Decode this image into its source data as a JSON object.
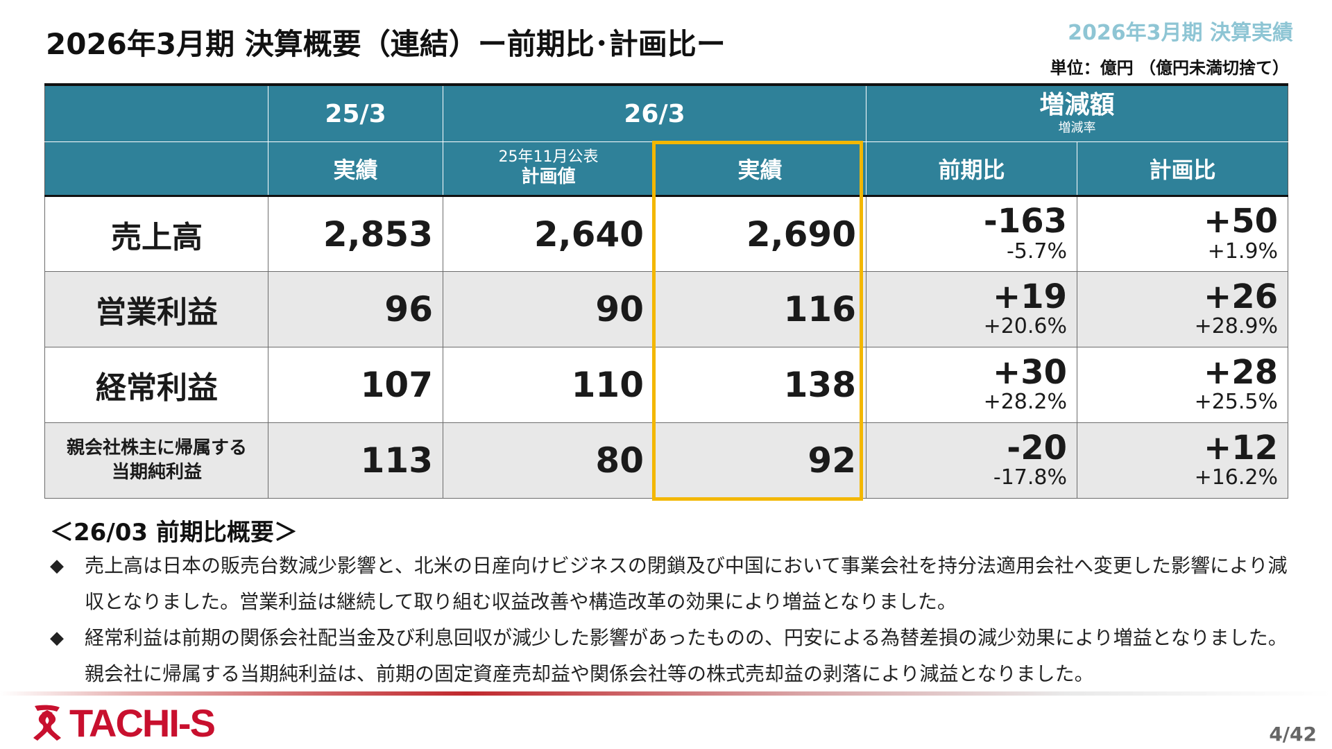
{
  "slide": {
    "title": "2026年3月期 決算概要（連結）ー前期比･計画比ー",
    "header_tag": "2026年3月期 決算実績",
    "unit": "単位：億円 （億円未満切捨て）",
    "page": "4/42",
    "logo_text": "TACHI-S"
  },
  "table": {
    "header1": {
      "col_253": "25/3",
      "col_263": "26/3",
      "diff_main": "増減額",
      "diff_sub": "増減率"
    },
    "header2": {
      "actual_prev": "実績",
      "plan_sub": "25年11月公表",
      "plan_main": "計画値",
      "actual_cur": "実績",
      "yoy": "前期比",
      "vs_plan": "計画比"
    },
    "rows": [
      {
        "label": "売上高",
        "prev": "2,853",
        "plan": "2,640",
        "cur": "2,690",
        "yoy": "-163",
        "yoy_rate": "-5.7%",
        "vsplan": "+50",
        "vsplan_rate": "+1.9%"
      },
      {
        "label": "営業利益",
        "prev": "96",
        "plan": "90",
        "cur": "116",
        "yoy": "+19",
        "yoy_rate": "+20.6%",
        "vsplan": "+26",
        "vsplan_rate": "+28.9%"
      },
      {
        "label": "経常利益",
        "prev": "107",
        "plan": "110",
        "cur": "138",
        "yoy": "+30",
        "yoy_rate": "+28.2%",
        "vsplan": "+28",
        "vsplan_rate": "+25.5%"
      },
      {
        "label1": "親会社株主に帰属する",
        "label2": "当期純利益",
        "prev": "113",
        "plan": "80",
        "cur": "92",
        "yoy": "-20",
        "yoy_rate": "-17.8%",
        "vsplan": "+12",
        "vsplan_rate": "+16.2%"
      }
    ]
  },
  "summary": {
    "title": "＜26/03 前期比概要＞",
    "bullet_mark": "◆",
    "bullets": [
      "売上高は日本の販売台数減少影響と、北米の日産向けビジネスの閉鎖及び中国において事業会社を持分法適用会社へ変更した影響により減収となりました。営業利益は継続して取り組む収益改善や構造改革の効果により増益となりました。",
      "経常利益は前期の関係会社配当金及び利息回収が減少した影響があったものの、円安による為替差損の減少効果により増益となりました。親会社に帰属する当期純利益は、前期の固定資産売却益や関係会社等の株式売却益の剥落により減益となりました。"
    ]
  },
  "colors": {
    "header_bg": "#2f8199",
    "highlight": "#f3b700",
    "brand_red": "#c8102e",
    "tag_color": "#8ec5d4"
  },
  "icons": {
    "logo": "tachi-s-logo-mark"
  }
}
